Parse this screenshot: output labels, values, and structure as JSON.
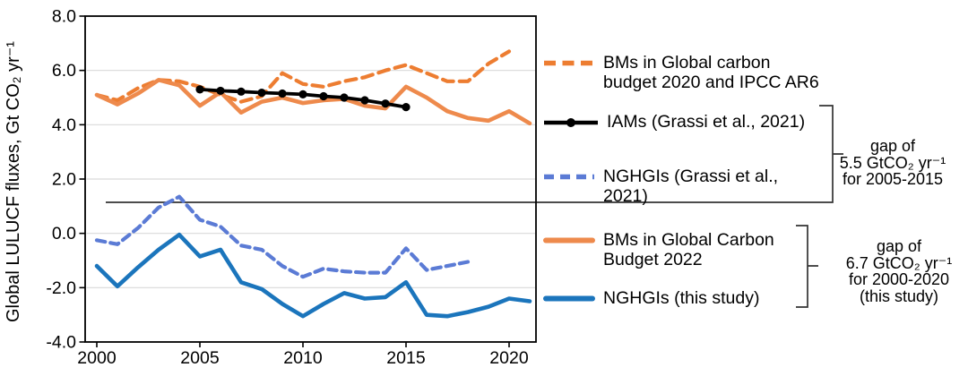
{
  "chart_data": {
    "type": "line",
    "title": "",
    "xlabel": "",
    "ylabel": "Global LULUCF fluxes, Gt CO₂ yr⁻¹",
    "ylim": [
      -4.0,
      8.0
    ],
    "xlim": [
      1999.4,
      2021.3
    ],
    "grid": "horizontal",
    "grid_values": [
      6.0,
      4.0,
      2.0,
      0.0,
      -2.0
    ],
    "x_tick_values": [
      2000,
      2005,
      2010,
      2015,
      2020
    ],
    "x_tick_labels": [
      "2000",
      "2005",
      "2010",
      "2015",
      "2020"
    ],
    "y_tick_values": [
      8.0,
      6.0,
      4.0,
      2.0,
      0.0,
      -2.0,
      -4.0
    ],
    "y_tick_labels": [
      "8.0",
      "6.0",
      "4.0",
      "2.0",
      "0.0",
      "-2.0",
      "-4.0"
    ],
    "legend_position": "right",
    "series": [
      {
        "id": "bm2020",
        "name": "BMs in Global carbon budget 2020 and IPCC AR6",
        "color": "#ED7D31",
        "line": "dashed",
        "dash": "12 7",
        "width": 4.2,
        "marker": false,
        "start_year": 2000,
        "years": [
          2000,
          2001,
          2002,
          2003,
          2004,
          2005,
          2006,
          2007,
          2008,
          2009,
          2010,
          2011,
          2012,
          2013,
          2014,
          2015,
          2016,
          2017,
          2018,
          2019,
          2020
        ],
        "values": [
          5.1,
          4.9,
          5.35,
          5.65,
          5.6,
          5.4,
          5.1,
          4.85,
          5.05,
          5.9,
          5.5,
          5.4,
          5.6,
          5.75,
          6.0,
          6.2,
          5.9,
          5.6,
          5.6,
          6.25,
          6.7
        ]
      },
      {
        "id": "nghgi_grassi",
        "name": "NGHGIs (Grassi et al., 2021)",
        "color": "#5B7BD5",
        "line": "dashed",
        "dash": "9.5 6",
        "width": 4.2,
        "marker": false,
        "start_year": 2000,
        "years": [
          2000,
          2001,
          2002,
          2003,
          2004,
          2005,
          2006,
          2007,
          2008,
          2009,
          2010,
          2011,
          2012,
          2013,
          2014,
          2015,
          2016,
          2017,
          2018
        ],
        "values": [
          -0.25,
          -0.4,
          0.2,
          0.95,
          1.35,
          0.5,
          0.25,
          -0.45,
          -0.6,
          -1.2,
          -1.6,
          -1.3,
          -1.4,
          -1.45,
          -1.45,
          -0.55,
          -1.35,
          -1.2,
          -1.05
        ]
      },
      {
        "id": "bm2022",
        "name": "BMs in Global Carbon Budget 2022",
        "color": "#EE8A4C",
        "line": "solid",
        "dash": "",
        "width": 4.6,
        "marker": false,
        "start_year": 2000,
        "years": [
          2000,
          2001,
          2002,
          2003,
          2004,
          2005,
          2006,
          2007,
          2008,
          2009,
          2010,
          2011,
          2012,
          2013,
          2014,
          2015,
          2016,
          2017,
          2018,
          2019,
          2020,
          2021
        ],
        "values": [
          5.1,
          4.75,
          5.15,
          5.65,
          5.45,
          4.7,
          5.2,
          4.45,
          4.85,
          5.0,
          4.8,
          4.9,
          4.95,
          4.7,
          4.6,
          5.4,
          5.0,
          4.5,
          4.25,
          4.15,
          4.5,
          4.05
        ]
      },
      {
        "id": "nghgi_study",
        "name": "NGHGIs (this study)",
        "color": "#1B75BC",
        "line": "solid",
        "dash": "",
        "width": 4.6,
        "marker": false,
        "start_year": 2000,
        "years": [
          2000,
          2001,
          2002,
          2003,
          2004,
          2005,
          2006,
          2007,
          2008,
          2009,
          2010,
          2011,
          2012,
          2013,
          2014,
          2015,
          2016,
          2017,
          2018,
          2019,
          2020,
          2021
        ],
        "values": [
          -1.2,
          -1.95,
          -1.25,
          -0.6,
          -0.05,
          -0.85,
          -0.6,
          -1.8,
          -2.05,
          -2.6,
          -3.05,
          -2.6,
          -2.2,
          -2.4,
          -2.35,
          -1.8,
          -3.0,
          -3.05,
          -2.9,
          -2.7,
          -2.4,
          -2.5
        ]
      },
      {
        "id": "iams",
        "name": "IAMs (Grassi et al., 2021)",
        "color": "#000000",
        "line": "solid",
        "dash": "",
        "width": 3.8,
        "marker": true,
        "marker_radius": 4.6,
        "start_year": 2005,
        "years": [
          2005,
          2006,
          2007,
          2008,
          2009,
          2010,
          2011,
          2012,
          2013,
          2014,
          2015
        ],
        "values": [
          5.3,
          5.25,
          5.22,
          5.18,
          5.15,
          5.12,
          5.05,
          5.0,
          4.9,
          4.78,
          4.65
        ]
      }
    ]
  },
  "legend": {
    "items": [
      {
        "id": "bm2020",
        "swatch": "dashed-line",
        "color": "#ED7D31",
        "line1": "BMs in Global carbon",
        "line2": "budget 2020 and IPCC AR6"
      },
      {
        "id": "iams",
        "swatch": "line-with-marker",
        "color": "#000000",
        "line1": "IAMs (Grassi et al., 2021)",
        "line2": ""
      },
      {
        "id": "nghgi_grassi",
        "swatch": "dashed-line",
        "color": "#5B7BD5",
        "line1": "NGHGIs (Grassi et al.,",
        "line2": "2021)"
      },
      {
        "id": "bm2022",
        "swatch": "solid-line",
        "color": "#EE8A4C",
        "line1": "BMs in Global Carbon",
        "line2": "Budget 2022"
      },
      {
        "id": "nghgi_study",
        "swatch": "solid-line",
        "color": "#1B75BC",
        "line1": "NGHGIs (this study)",
        "line2": ""
      }
    ]
  },
  "annotations": {
    "gap1": {
      "line1": "gap of",
      "line2": "5.5 GtCO₂ yr⁻¹",
      "line3": "for 2005-2015"
    },
    "gap2": {
      "line1": "gap of",
      "line2": "6.7 GtCO₂ yr⁻¹",
      "line3": "for 2000-2020",
      "line4": "(this study)"
    }
  },
  "colors": {
    "gridline": "#D9D9D9",
    "axis_border": "#000000",
    "bracket": "#333333",
    "background": "#FFFFFF"
  }
}
